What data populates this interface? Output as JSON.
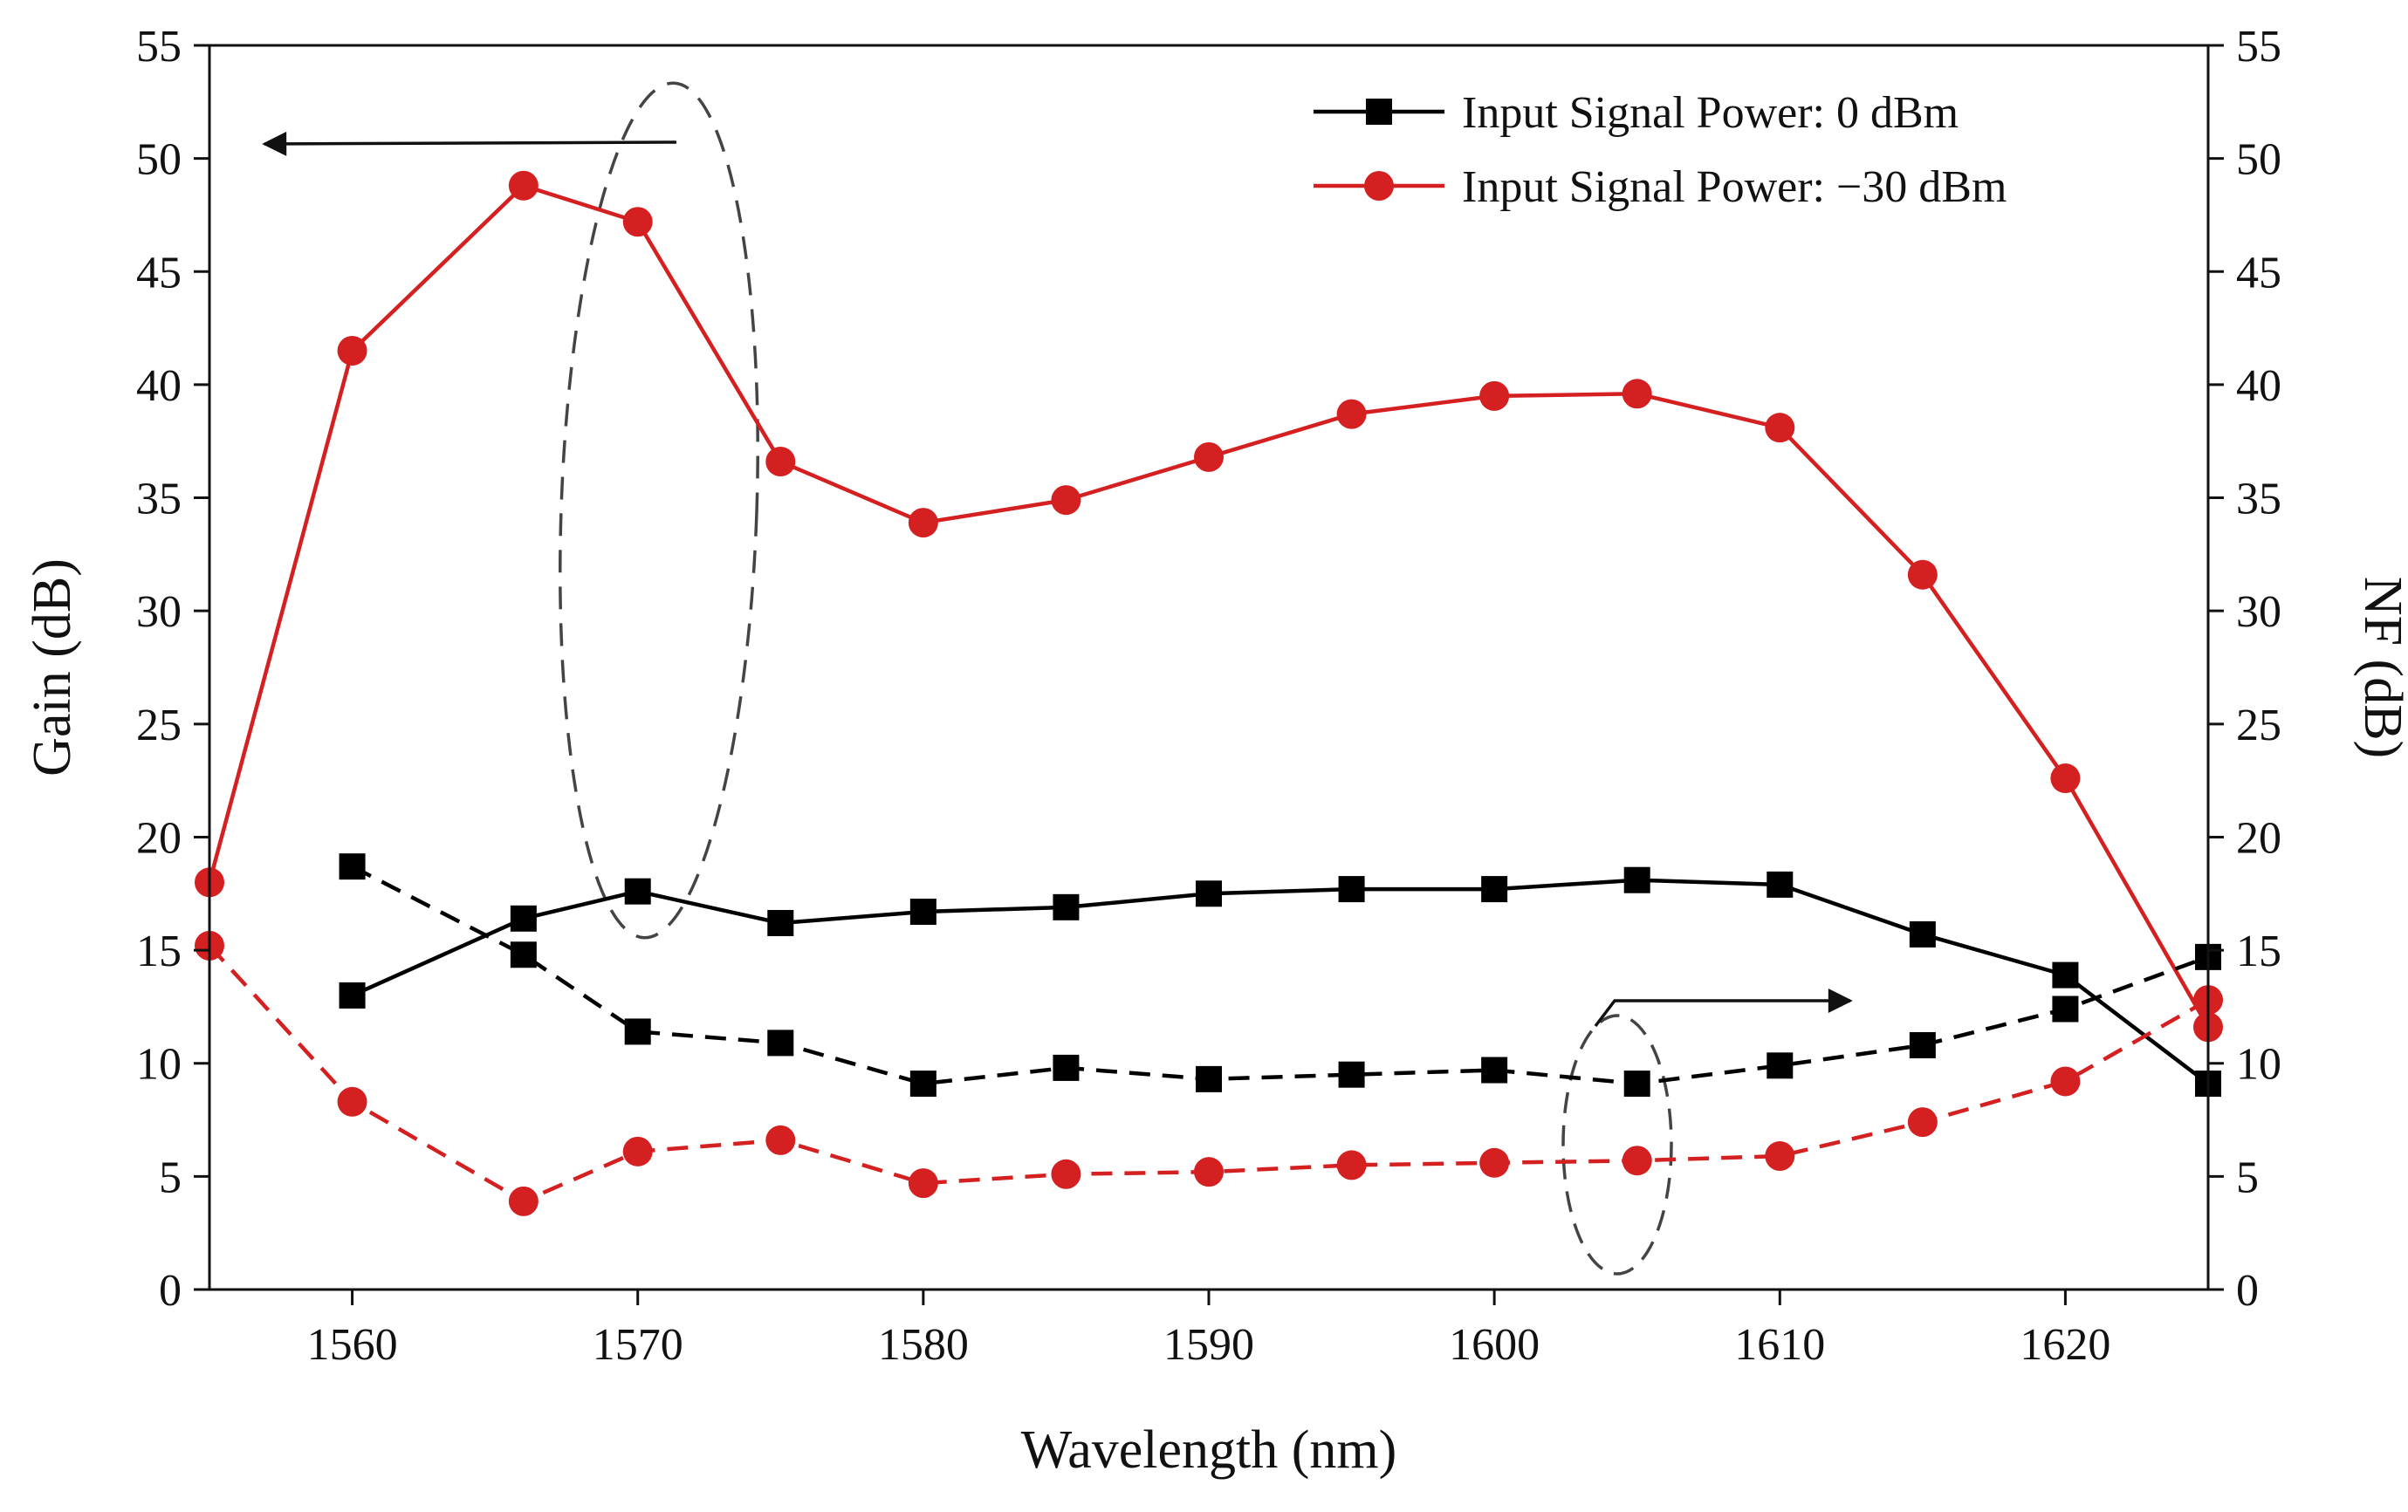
{
  "chart_data": {
    "type": "line",
    "title": "",
    "xlabel": "Wavelength (nm)",
    "ylabel_left": "Gain (dB)",
    "ylabel_right": "NF (dB)",
    "xlim": [
      1555,
      1625
    ],
    "ylim": [
      0,
      55
    ],
    "x_ticks": [
      1560,
      1570,
      1580,
      1590,
      1600,
      1610,
      1620
    ],
    "y_ticks": [
      0,
      5,
      10,
      15,
      20,
      25,
      30,
      35,
      40,
      45,
      50,
      55
    ],
    "grid": false,
    "legend_position": "top-right",
    "series": [
      {
        "name": "Input Signal Power: 0 dBm",
        "metric": "Gain",
        "axis": "left",
        "color": "#000000",
        "marker": "square",
        "line_style": "solid",
        "in_legend": true,
        "x": [
          1560,
          1566,
          1570,
          1575,
          1580,
          1585,
          1590,
          1595,
          1600,
          1605,
          1610,
          1615,
          1620,
          1625
        ],
        "y": [
          13.0,
          16.4,
          17.6,
          16.2,
          16.7,
          16.9,
          17.5,
          17.7,
          17.7,
          18.1,
          17.9,
          15.7,
          13.9,
          9.1
        ]
      },
      {
        "name": "Input Signal Power: −30 dBm",
        "metric": "Gain",
        "axis": "left",
        "color": "#d42020",
        "marker": "circle",
        "line_style": "solid",
        "in_legend": true,
        "x": [
          1555,
          1560,
          1566,
          1570,
          1575,
          1580,
          1585,
          1590,
          1595,
          1600,
          1605,
          1610,
          1615,
          1620,
          1625
        ],
        "y": [
          18.0,
          41.5,
          48.8,
          47.2,
          36.6,
          33.9,
          34.9,
          36.8,
          38.7,
          39.5,
          39.6,
          38.1,
          31.6,
          22.6,
          11.6
        ]
      },
      {
        "name": "Input Signal Power: 0 dBm",
        "metric": "NF",
        "axis": "right",
        "color": "#000000",
        "marker": "square",
        "line_style": "dashed",
        "in_legend": false,
        "x": [
          1560,
          1566,
          1570,
          1575,
          1580,
          1585,
          1590,
          1595,
          1600,
          1605,
          1610,
          1615,
          1620,
          1625
        ],
        "y": [
          18.7,
          14.8,
          11.4,
          10.9,
          9.1,
          9.8,
          9.3,
          9.5,
          9.7,
          9.1,
          9.9,
          10.8,
          12.4,
          14.7
        ]
      },
      {
        "name": "Input Signal Power: −30 dBm",
        "metric": "NF",
        "axis": "right",
        "color": "#d42020",
        "marker": "circle",
        "line_style": "dashed",
        "in_legend": false,
        "x": [
          1555,
          1560,
          1566,
          1570,
          1575,
          1580,
          1585,
          1590,
          1595,
          1600,
          1605,
          1610,
          1615,
          1620,
          1625
        ],
        "y": [
          15.2,
          8.3,
          3.9,
          6.1,
          6.6,
          4.7,
          5.1,
          5.2,
          5.5,
          5.6,
          5.7,
          5.9,
          7.4,
          9.2,
          12.8
        ]
      }
    ],
    "annotations": [
      {
        "type": "ellipse-with-arrow",
        "indicates_axis": "left",
        "encloses": "gain curves near 1570 nm"
      },
      {
        "type": "ellipse-with-arrow",
        "indicates_axis": "right",
        "encloses": "NF curves near 1605 nm"
      }
    ]
  }
}
